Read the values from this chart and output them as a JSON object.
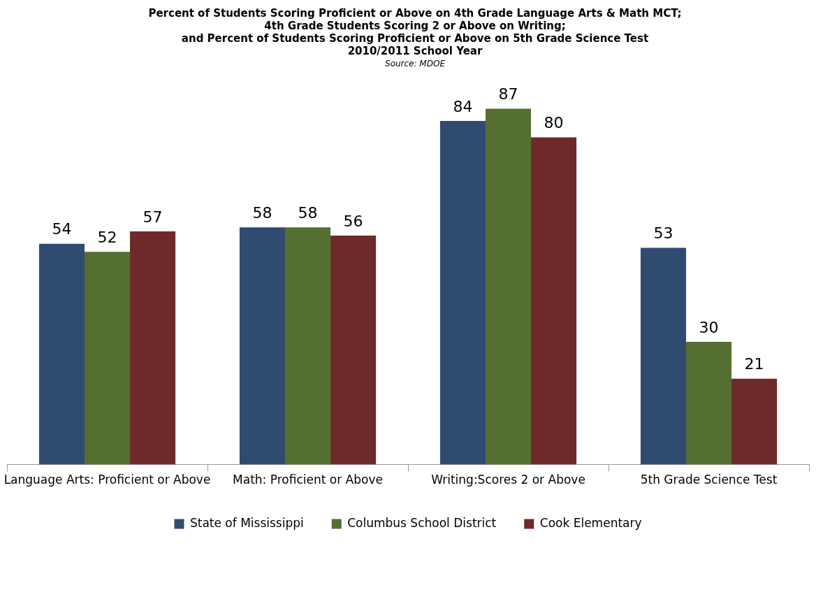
{
  "chart_data": {
    "type": "bar",
    "title": "Percent of Students Scoring Proficient or Above on 4th Grade Language Arts & Math MCT;\n4th Grade Students Scoring 2 or Above on Writing;\nand Percent of Students Scoring Proficient or Above on 5th Grade Science Test\n2010/2011 School Year",
    "annotations": [
      "Source: MDOE"
    ],
    "categories": [
      "Language Arts: Proficient or Above",
      "Math: Proficient or Above",
      "Writing:Scores 2 or Above",
      "5th Grade Science Test"
    ],
    "series": [
      {
        "name": "State of Mississippi",
        "color": "#2f4b70",
        "values": [
          54,
          58,
          84,
          53
        ]
      },
      {
        "name": "Columbus School District",
        "color": "#546f31",
        "values": [
          52,
          58,
          87,
          30
        ]
      },
      {
        "name": "Cook Elementary",
        "color": "#6e2a2a",
        "values": [
          57,
          56,
          80,
          21
        ]
      }
    ],
    "data_labels": true,
    "legend": "bottom",
    "grid": false,
    "tick_labels": "x"
  }
}
